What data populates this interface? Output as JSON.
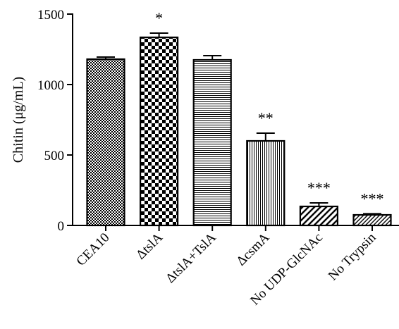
{
  "chart_data": {
    "type": "bar",
    "ylabel": "Chitin (μg/mL)",
    "xlabel": "",
    "ylim": [
      0,
      1500
    ],
    "yticks": [
      0,
      500,
      1000,
      1500
    ],
    "grid": false,
    "categories": [
      "CEA10",
      "ΔtslA",
      "ΔtslA+TslA",
      "ΔcsmA",
      "No UDP-GlcNAc",
      "No Trypsin"
    ],
    "values": [
      1180,
      1335,
      1175,
      600,
      135,
      75
    ],
    "errors": [
      15,
      30,
      30,
      55,
      25,
      8
    ],
    "significance": [
      "",
      "*",
      "",
      "**",
      "***",
      "***"
    ],
    "patterns": [
      "fine-checker",
      "coarse-checker",
      "horizontal-lines",
      "vertical-lines",
      "diagonal-wide",
      "diagonal-fine"
    ]
  }
}
